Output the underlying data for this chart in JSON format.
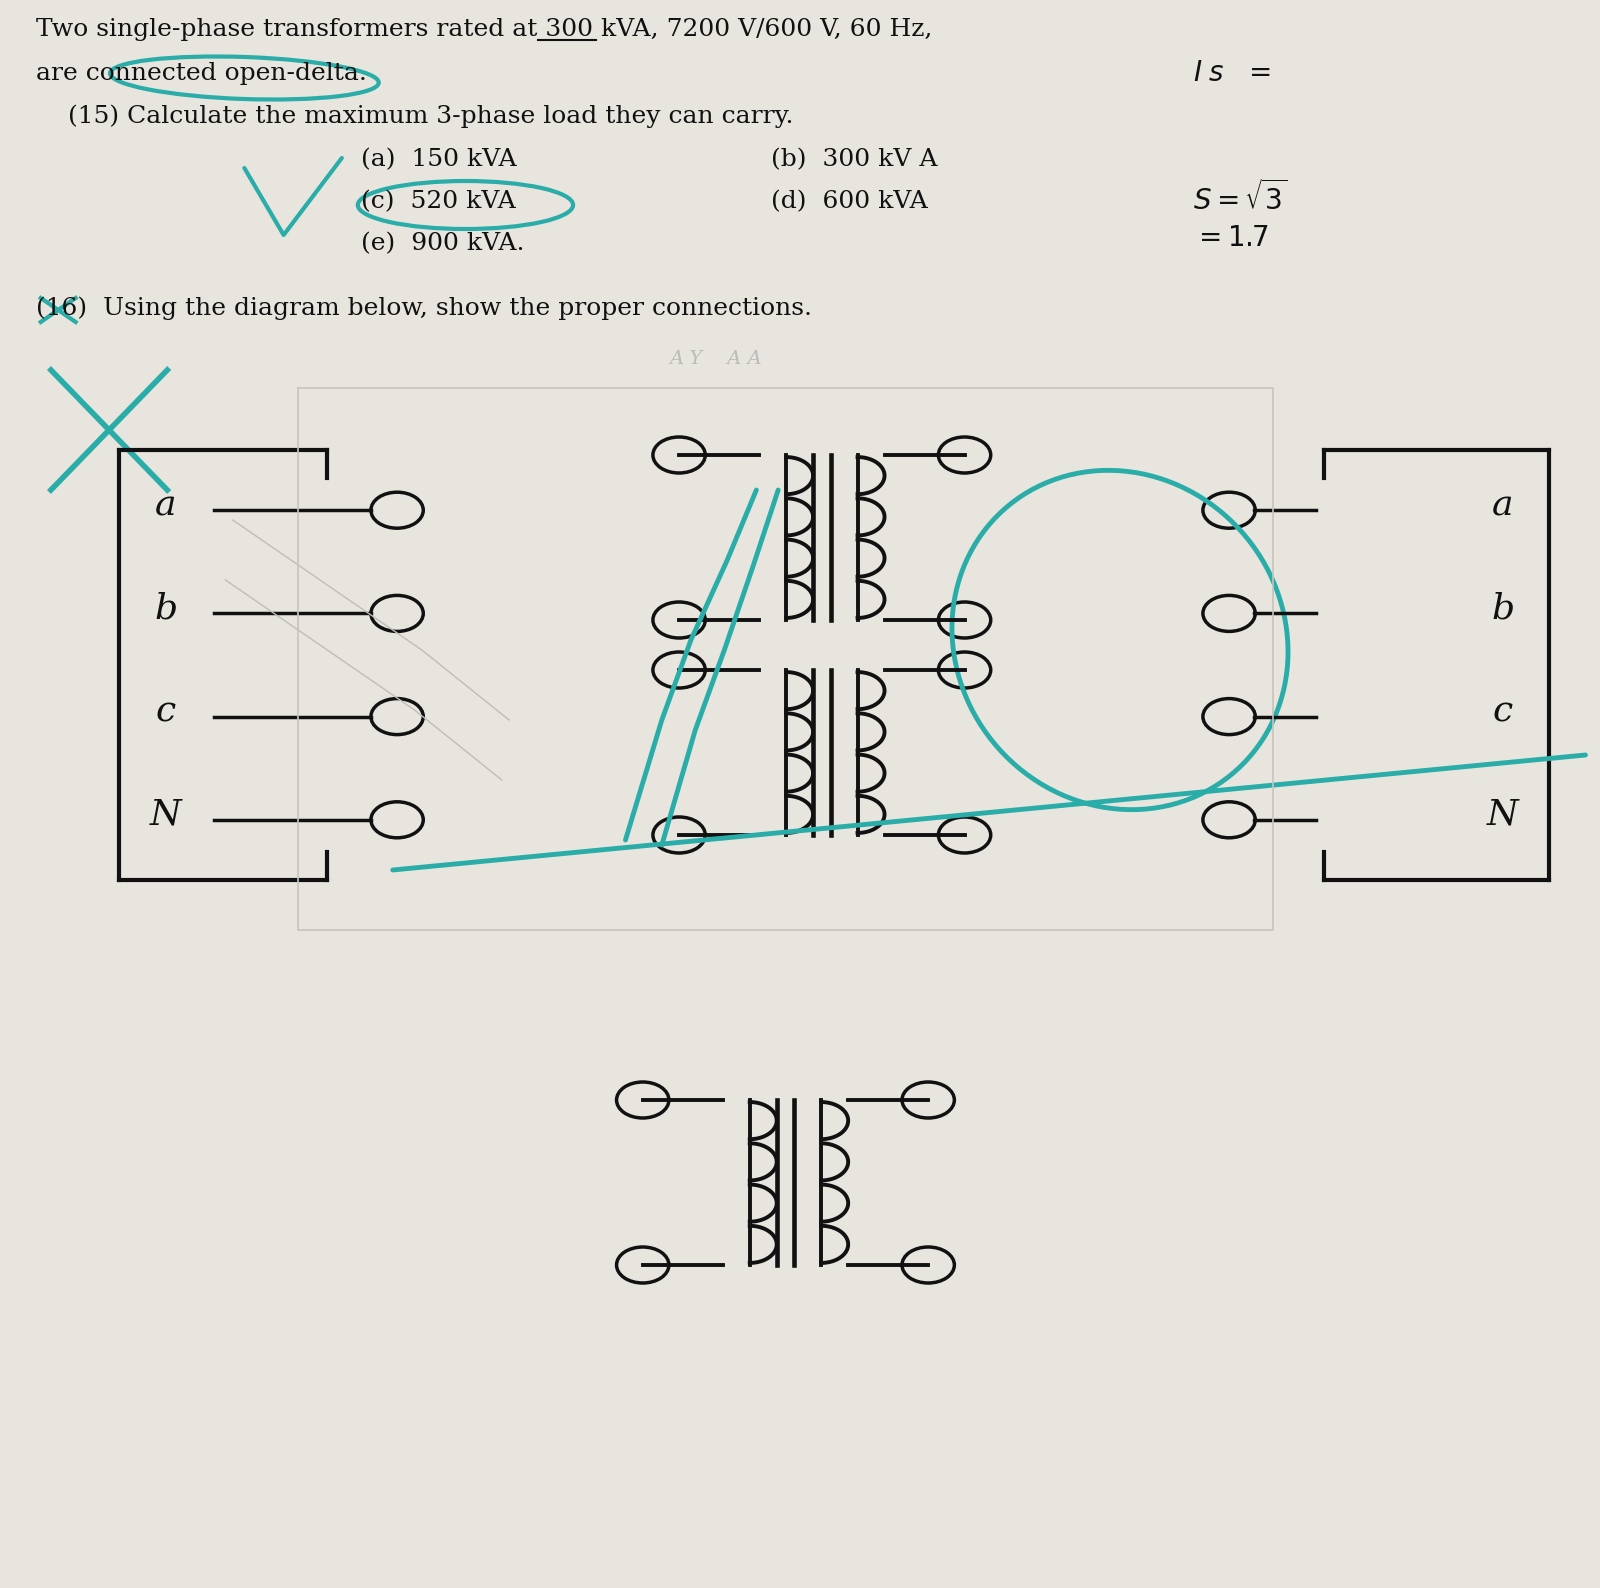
{
  "paper_color": "#e8e5de",
  "black": "#111111",
  "teal": "#2aada8",
  "gray_note": "#aaaaaa",
  "line1": "Two single-phase transformers rated at 300 kVA, 7200 V/600 V, 60 Hz,",
  "line2": "are connected open-delta.",
  "q15": "    (15) Calculate the maximum 3-phase load they can carry.",
  "opt_a": "(a)  150 kVA",
  "opt_b": "(b)  300 kV A",
  "opt_c": "(c)  520 kVA",
  "opt_d": "(d)  600 kVA",
  "opt_e": "(e)  900 kVA.",
  "q16": "(16)  Using the diagram below, show the proper connections.",
  "note": "A Y    A A",
  "Is_label": "$I \\; s \\; =$",
  "S_label": "$S = \\sqrt{3}$",
  "S_val": "$= 1.7$",
  "lbox_labels": [
    "a",
    "b",
    "c",
    "N"
  ],
  "rbox_labels": [
    "a",
    "b",
    "c",
    "N"
  ]
}
